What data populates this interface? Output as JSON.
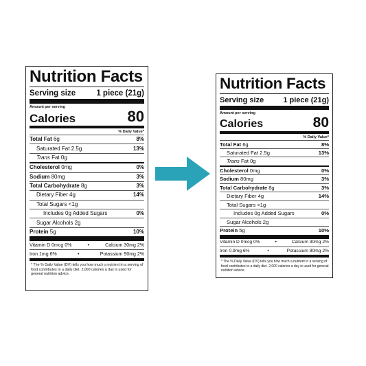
{
  "arrow": {
    "color": "#2aa3b8"
  },
  "labels": [
    {
      "title": "Nutrition Facts",
      "serving_label": "Serving size",
      "serving_value": "1 piece (21g)",
      "amount_per_serving": "Amount per serving",
      "calories_label": "Calories",
      "calories_value": "80",
      "dv_header": "% Daily Value*",
      "nutrients": [
        {
          "label": "Total Fat",
          "amount": "6g",
          "dv": "8%"
        },
        {
          "label": "Saturated Fat",
          "amount": "2.5g",
          "dv": "13%"
        },
        {
          "label": "Trans",
          "label_rest": "Fat 0g",
          "dv": ""
        },
        {
          "label": "Cholesterol",
          "amount": "0mg",
          "dv": "0%"
        },
        {
          "label": "Sodium",
          "amount": "80mg",
          "dv": "3%"
        },
        {
          "label": "Total Carbohydrate",
          "amount": "8g",
          "dv": "3%"
        },
        {
          "label": "Dietary Fiber",
          "amount": "4g",
          "dv": "14%"
        },
        {
          "label": "Total Sugars <1g",
          "dv": ""
        },
        {
          "label": "Includes 0g Added Sugars",
          "dv": "0%"
        },
        {
          "label": "Sugar Alcohols 2g",
          "dv": ""
        },
        {
          "label": "Protein",
          "amount": "5g",
          "dv": "10%"
        }
      ],
      "vitamins": [
        {
          "left": "Vitamin D 0mcg 0%",
          "sep": "•",
          "right": "Calcium 30mg 2%"
        },
        {
          "left": "Iron 1mg 6%",
          "sep": "•",
          "right": "Potassium 90mg 2%"
        }
      ],
      "footnote": "* The % Daily Value (DV) tells you how much a nutrient in a serving of food contributes to a daily diet. 2,000 calories a day is used for general nutrition advice."
    },
    {
      "title": "Nutrition Facts",
      "serving_label": "Serving size",
      "serving_value": "1 piece (21g)",
      "amount_per_serving": "Amount per serving",
      "calories_label": "Calories",
      "calories_value": "80",
      "dv_header": "% Daily Value*",
      "nutrients": [
        {
          "label": "Total Fat",
          "amount": "6g",
          "dv": "8%"
        },
        {
          "label": "Saturated Fat",
          "amount": "2.5g",
          "dv": "13%"
        },
        {
          "label": "Trans",
          "label_rest": "Fat 0g",
          "dv": ""
        },
        {
          "label": "Cholesterol",
          "amount": "0mg",
          "dv": "0%"
        },
        {
          "label": "Sodium",
          "amount": "80mg",
          "dv": "3%"
        },
        {
          "label": "Total Carbohydrate",
          "amount": "8g",
          "dv": "3%"
        },
        {
          "label": "Dietary Fiber",
          "amount": "4g",
          "dv": "14%"
        },
        {
          "label": "Total Sugars <1g",
          "dv": ""
        },
        {
          "label": "Includes 0g Added Sugars",
          "dv": "0%"
        },
        {
          "label": "Sugar Alcohols 2g",
          "dv": ""
        },
        {
          "label": "Protein",
          "amount": "5g",
          "dv": "10%"
        }
      ],
      "vitamins": [
        {
          "left": "Vitamin D 0mcg 0%",
          "sep": "•",
          "right": "Calcium 30mg 2%"
        },
        {
          "left": "Iron 0.9mg 6%",
          "sep": "•",
          "right": "Potassium 80mg 2%"
        }
      ],
      "footnote": "* The % Daily Value (DV) tells you how much a nutrient in a serving of food contributes to a daily diet. 2,000 calories a day is used for general nutrition advice."
    }
  ]
}
